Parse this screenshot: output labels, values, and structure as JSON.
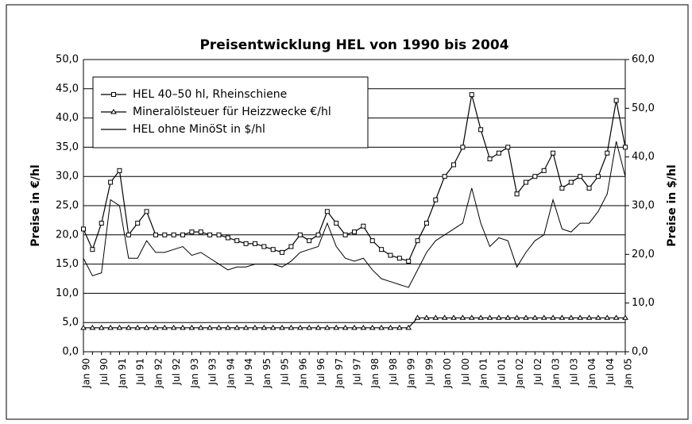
{
  "chart_data": {
    "type": "line",
    "title": "Preisentwicklung HEL von 1990 bis 2004",
    "ylabel": "Preise in €/hl",
    "y2label": "Preise in $/hl",
    "categories": [
      "Jan 90",
      null,
      "Jul 90",
      null,
      "Jan 91",
      null,
      "Jul 91",
      null,
      "Jan 92",
      null,
      "Jul 92",
      null,
      "Jan 93",
      null,
      "Jul 93",
      null,
      "Jan 94",
      null,
      "Jul 94",
      null,
      "Jan 95",
      null,
      "Jul 95",
      null,
      "Jan 96",
      null,
      "Jul 96",
      null,
      "Jan 97",
      null,
      "Jul 97",
      null,
      "Jan 98",
      null,
      "Jul 98",
      null,
      "Jan 99",
      null,
      "Jul 99",
      null,
      "Jan 00",
      null,
      "Jul 00",
      null,
      "Jan 01",
      null,
      "Jul 01",
      null,
      "Jan 02",
      null,
      "Jul 02",
      null,
      "Jan 03",
      null,
      "Jul 03",
      null,
      "Jan 04",
      null,
      "Jul 04",
      null,
      "Jan 05"
    ],
    "series": [
      {
        "name": "HEL 40–50 hl, Rheinschiene",
        "color": "#000000",
        "marker": "square",
        "values": [
          21,
          17.5,
          22,
          29,
          31,
          20,
          22,
          24,
          20,
          20,
          20,
          20,
          20.5,
          20.5,
          20,
          20,
          19.5,
          19,
          18.5,
          18.5,
          18,
          17.5,
          17,
          18,
          20,
          19,
          20,
          24,
          22,
          20,
          20.5,
          21.5,
          19,
          17.5,
          16.5,
          16,
          15.5,
          19,
          22,
          26,
          30,
          32,
          35,
          44,
          38,
          33,
          34,
          35,
          27,
          29,
          30,
          31,
          34,
          28,
          29,
          30,
          28,
          30,
          34,
          43,
          35
        ]
      },
      {
        "name": "Mineralölsteuer für Heizzwecke €/hl",
        "color": "#000000",
        "marker": "triangle",
        "values": [
          4.1,
          4.1,
          4.1,
          4.1,
          4.1,
          4.1,
          4.1,
          4.1,
          4.1,
          4.1,
          4.1,
          4.1,
          4.1,
          4.1,
          4.1,
          4.1,
          4.1,
          4.1,
          4.1,
          4.1,
          4.1,
          4.1,
          4.1,
          4.1,
          4.1,
          4.1,
          4.1,
          4.1,
          4.1,
          4.1,
          4.1,
          4.1,
          4.1,
          4.1,
          4.1,
          4.1,
          4.1,
          5.8,
          5.8,
          5.8,
          5.8,
          5.8,
          5.8,
          5.8,
          5.8,
          5.8,
          5.8,
          5.8,
          5.8,
          5.8,
          5.8,
          5.8,
          5.8,
          5.8,
          5.8,
          5.8,
          5.8,
          5.8,
          5.8,
          5.8,
          5.8
        ]
      },
      {
        "name": "HEL ohne MinöSt in $/hl",
        "color": "#000000",
        "axis": "y2",
        "values": [
          19.2,
          15.6,
          16.2,
          31.2,
          30,
          19.2,
          19.2,
          22.8,
          20.4,
          20.4,
          21,
          21.6,
          19.8,
          20.4,
          19.2,
          18,
          16.8,
          17.4,
          17.4,
          18,
          18,
          18,
          17.4,
          18.6,
          20.4,
          21,
          21.6,
          26.4,
          21.6,
          19.2,
          18.6,
          19.2,
          16.8,
          15,
          14.4,
          13.8,
          13.2,
          16.8,
          20.4,
          22.8,
          24,
          25.2,
          26.4,
          33.6,
          26.4,
          21.6,
          23.4,
          22.8,
          17.4,
          20.4,
          22.8,
          24,
          31.2,
          25.2,
          24.6,
          26.4,
          26.4,
          28.8,
          32.4,
          43.2,
          36
        ]
      }
    ],
    "ylim": [
      0,
      50
    ],
    "yticks": [
      {
        "value": 0,
        "label": "0,0"
      },
      {
        "value": 5,
        "label": "5,0"
      },
      {
        "value": 10,
        "label": "10,0"
      },
      {
        "value": 15,
        "label": "15,0"
      },
      {
        "value": 20,
        "label": "20,0"
      },
      {
        "value": 25,
        "label": "25,0"
      },
      {
        "value": 30,
        "label": "30,0"
      },
      {
        "value": 35,
        "label": "35,0"
      },
      {
        "value": 40,
        "label": "40,0"
      },
      {
        "value": 45,
        "label": "45,0"
      },
      {
        "value": 50,
        "label": "50,0"
      }
    ],
    "y2lim": [
      0,
      60
    ],
    "y2ticks": [
      {
        "value": 0,
        "label": "0,0"
      },
      {
        "value": 10,
        "label": "10,0"
      },
      {
        "value": 20,
        "label": "20,0"
      },
      {
        "value": 30,
        "label": "30,0"
      },
      {
        "value": 40,
        "label": "40,0"
      },
      {
        "value": 50,
        "label": "50,0"
      },
      {
        "value": 60,
        "label": "60,0"
      }
    ],
    "grid": true,
    "legend": "upper left"
  }
}
